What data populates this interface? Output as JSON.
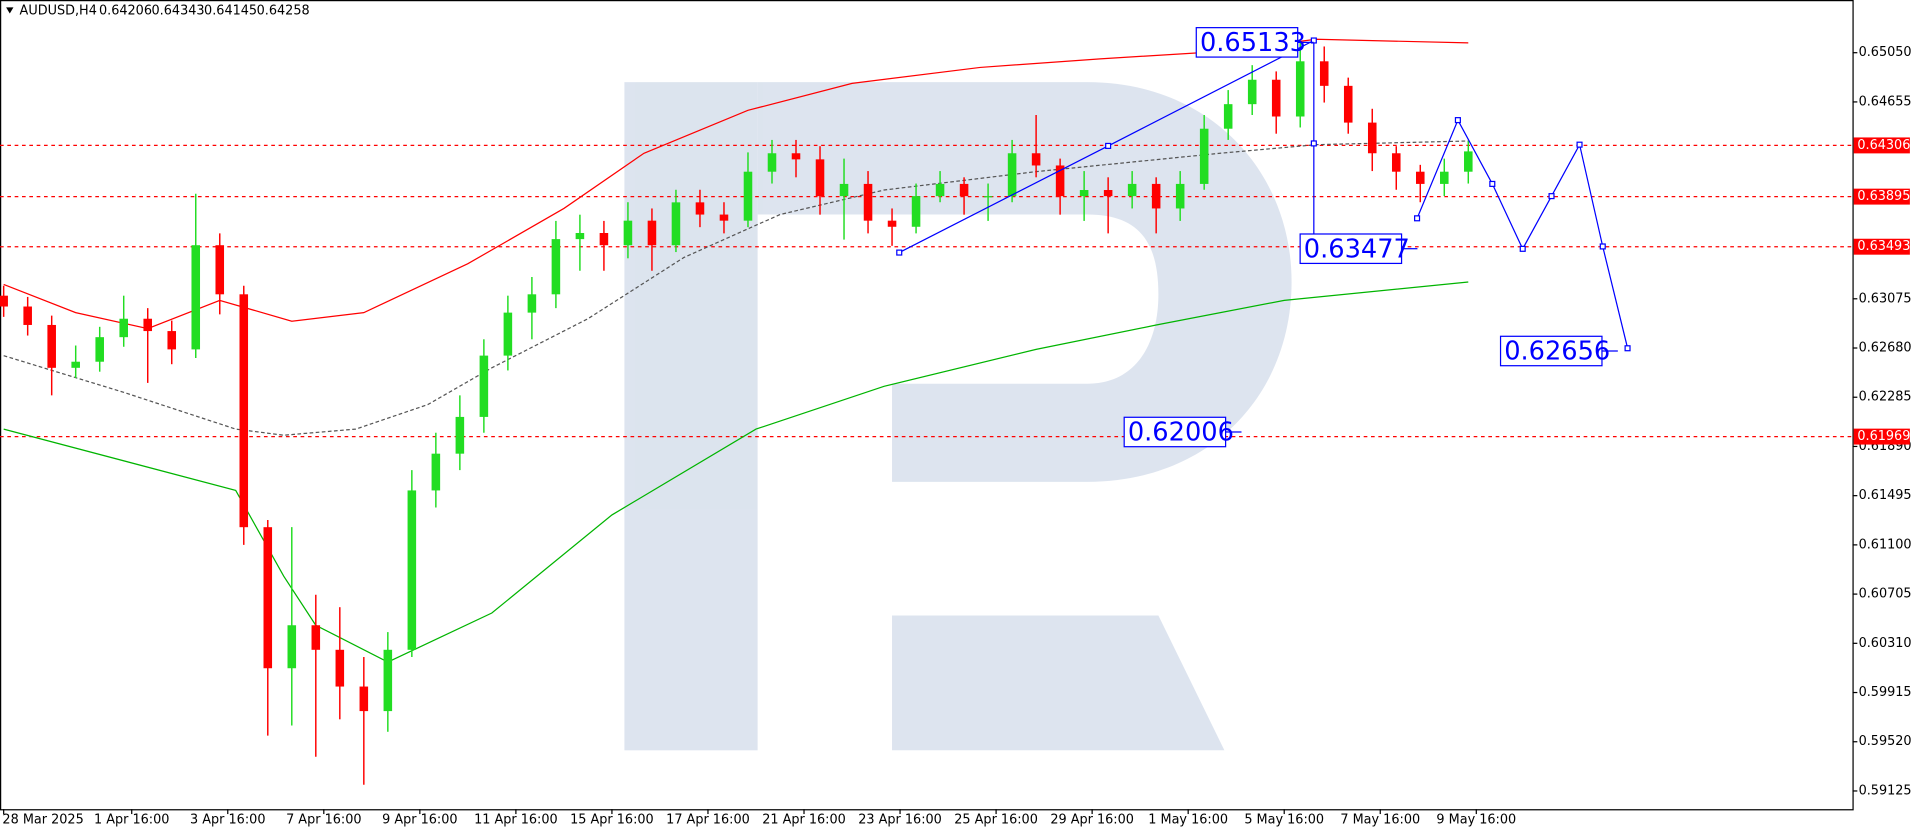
{
  "header": {
    "symbol": "AUDUSD,H4",
    "quote": [
      0.64206,
      0.64343,
      0.64145,
      0.64258
    ]
  },
  "chart_data": {
    "type": "candlestick",
    "x": [
      0,
      3,
      6,
      9,
      12,
      15,
      18,
      21,
      24,
      27,
      30,
      33,
      36,
      39,
      42,
      45,
      48,
      51,
      54,
      57,
      60,
      63,
      66,
      69,
      72,
      75,
      78,
      81,
      84,
      87,
      90,
      93,
      96,
      99,
      102,
      105,
      108,
      111,
      114,
      117,
      120,
      123,
      126,
      129,
      132,
      135,
      138,
      141,
      144,
      147,
      150,
      153,
      156,
      159,
      162,
      165,
      168,
      171,
      174,
      177,
      180,
      183
    ],
    "open": [
      0.631,
      0.63013,
      0.62865,
      0.62521,
      0.6257,
      0.62767,
      0.62915,
      0.62816,
      0.62669,
      0.63505,
      0.63111,
      0.61242,
      0.6011,
      0.60455,
      0.60258,
      0.59963,
      0.59766,
      0.60258,
      0.61537,
      0.61832,
      0.62127,
      0.62619,
      0.62964,
      0.63111,
      0.63554,
      0.63603,
      0.63505,
      0.63702,
      0.63505,
      0.63849,
      0.63751,
      0.63702,
      0.64095,
      0.64243,
      0.64194,
      0.63899,
      0.63997,
      0.63702,
      0.63653,
      0.63899,
      0.63997,
      0.63899,
      0.63899,
      0.64243,
      0.64145,
      0.63899,
      0.63948,
      0.63899,
      0.63997,
      0.638,
      0.63997,
      0.6444,
      0.64637,
      0.64833,
      0.64538,
      0.64981,
      0.64784,
      0.64489,
      0.64243,
      0.64095,
      0.63997,
      0.64095
    ],
    "high": [
      0.6318,
      0.6309,
      0.6294,
      0.627,
      0.6285,
      0.631,
      0.63,
      0.629,
      0.63918,
      0.636,
      0.6318,
      0.613,
      0.61242,
      0.607,
      0.606,
      0.602,
      0.604,
      0.617,
      0.62,
      0.623,
      0.6275,
      0.631,
      0.6325,
      0.637,
      0.6375,
      0.637,
      0.6385,
      0.638,
      0.6395,
      0.6395,
      0.6385,
      0.6425,
      0.6435,
      0.6435,
      0.643,
      0.642,
      0.641,
      0.638,
      0.64,
      0.641,
      0.6405,
      0.64,
      0.6435,
      0.6455,
      0.642,
      0.641,
      0.6405,
      0.641,
      0.6405,
      0.641,
      0.6455,
      0.6475,
      0.6495,
      0.649,
      0.65133,
      0.651,
      0.6485,
      0.646,
      0.643,
      0.6415,
      0.642,
      0.64343
    ],
    "low": [
      0.6293,
      0.6278,
      0.623,
      0.6244,
      0.6249,
      0.6269,
      0.624,
      0.6255,
      0.626,
      0.6295,
      0.611,
      0.59569,
      0.5965,
      0.594,
      0.597,
      0.59175,
      0.596,
      0.602,
      0.614,
      0.617,
      0.62,
      0.625,
      0.6275,
      0.63,
      0.633,
      0.633,
      0.634,
      0.633,
      0.6345,
      0.6365,
      0.636,
      0.6365,
      0.64,
      0.6405,
      0.6375,
      0.6355,
      0.636,
      0.635,
      0.636,
      0.6385,
      0.6375,
      0.637,
      0.6385,
      0.6405,
      0.6375,
      0.637,
      0.636,
      0.638,
      0.636,
      0.637,
      0.6395,
      0.6435,
      0.6455,
      0.644,
      0.6445,
      0.6465,
      0.644,
      0.641,
      0.6395,
      0.6385,
      0.639,
      0.64
    ],
    "close": [
      0.63013,
      0.62865,
      0.62521,
      0.6257,
      0.62767,
      0.62915,
      0.62816,
      0.62669,
      0.63505,
      0.63111,
      0.61242,
      0.6011,
      0.60455,
      0.60258,
      0.59963,
      0.59766,
      0.60258,
      0.61537,
      0.61832,
      0.62127,
      0.62619,
      0.62964,
      0.63111,
      0.63554,
      0.63603,
      0.63505,
      0.63702,
      0.63505,
      0.63849,
      0.63751,
      0.63702,
      0.64095,
      0.64243,
      0.64194,
      0.63899,
      0.63997,
      0.63702,
      0.63653,
      0.63899,
      0.63997,
      0.63899,
      0.63899,
      0.64243,
      0.64145,
      0.63899,
      0.63948,
      0.63899,
      0.63997,
      0.638,
      0.63997,
      0.6444,
      0.64637,
      0.64833,
      0.64538,
      0.64981,
      0.64784,
      0.64489,
      0.64243,
      0.64095,
      0.63997,
      0.64095,
      0.64258
    ],
    "up_color": "#22dd22",
    "down_color": "#ff0000",
    "xlim": [
      0,
      231
    ],
    "xticks": [
      {
        "value": 0,
        "label": "28 Mar 2025"
      },
      {
        "value": 16,
        "label": "1 Apr 16:00"
      },
      {
        "value": 28,
        "label": "3 Apr 16:00"
      },
      {
        "value": 40,
        "label": "7 Apr 16:00"
      },
      {
        "value": 52,
        "label": "9 Apr 16:00"
      },
      {
        "value": 64,
        "label": "11 Apr 16:00"
      },
      {
        "value": 76,
        "label": "15 Apr 16:00"
      },
      {
        "value": 88,
        "label": "17 Apr 16:00"
      },
      {
        "value": 100,
        "label": "21 Apr 16:00"
      },
      {
        "value": 112,
        "label": "23 Apr 16:00"
      },
      {
        "value": 124,
        "label": "25 Apr 16:00"
      },
      {
        "value": 136,
        "label": "29 Apr 16:00"
      },
      {
        "value": 148,
        "label": "1 May 16:00"
      },
      {
        "value": 160,
        "label": "5 May 16:00"
      },
      {
        "value": 172,
        "label": "7 May 16:00"
      },
      {
        "value": 184,
        "label": "9 May 16:00"
      }
    ],
    "ylim": [
      0.58979,
      0.65473
    ],
    "yticks": [
      {
        "value": 0.6505,
        "label": "0.65050"
      },
      0.64655,
      0.63075,
      {
        "value": 0.6268,
        "label": "0.62680"
      },
      0.62285,
      {
        "value": 0.6189,
        "label": "0.61890"
      },
      0.61495,
      {
        "value": 0.611,
        "label": "0.61100"
      },
      0.60705,
      {
        "value": 0.6031,
        "label": "0.60310"
      },
      0.59915,
      {
        "value": 0.5952,
        "label": "0.59520"
      },
      0.59125
    ],
    "lines": [
      {
        "color": "#ff0000",
        "dashed": false,
        "x": [
          0,
          9,
          18,
          27,
          36,
          45,
          58,
          70,
          80,
          93,
          106,
          122,
          137,
          152,
          164,
          183
        ],
        "values": [
          0.6319,
          0.62964,
          0.62836,
          0.63062,
          0.62895,
          0.62964,
          0.63357,
          0.638,
          0.64243,
          0.64587,
          0.64804,
          0.64932,
          0.65001,
          0.6506,
          0.65158,
          0.65129
        ]
      },
      {
        "color": "#00b400",
        "dashed": false,
        "x": [
          0,
          29,
          35,
          39,
          48,
          61,
          76,
          94,
          110,
          129,
          144,
          160,
          183
        ],
        "values": [
          0.62029,
          0.61537,
          0.60848,
          0.60455,
          0.6016,
          0.60553,
          0.6134,
          0.62029,
          0.62373,
          0.62669,
          0.62865,
          0.63062,
          0.6321
        ]
      },
      {
        "color": "#555555",
        "dashed": true,
        "x": [
          0,
          15,
          29,
          35,
          44,
          53,
          61,
          73,
          85,
          97,
          110,
          129,
          152,
          164,
          183
        ],
        "values": [
          0.62619,
          0.62324,
          0.62029,
          0.6198,
          0.62029,
          0.62226,
          0.62521,
          0.62915,
          0.63407,
          0.63751,
          0.63948,
          0.64095,
          0.64243,
          0.64312,
          0.64341
        ]
      }
    ],
    "levels": [
      0.64306,
      0.63895,
      0.63493,
      0.61969
    ],
    "level_color": "#ff0000",
    "trend": {
      "color": "#0000ff",
      "x": [
        111.9,
        138.0,
        163.7,
        163.7,
        163.7
      ],
      "values": [
        0.63446,
        0.64302,
        0.65148,
        0.64322,
        0.63495
      ]
    },
    "forecast": {
      "color": "#0000ff",
      "x": [
        176.6,
        181.7,
        186.0,
        189.8,
        193.4,
        196.9,
        199.8,
        202.9
      ],
      "values": [
        0.63721,
        0.64509,
        0.63997,
        0.63476,
        0.63899,
        0.64312,
        0.63495,
        0.62678
      ]
    },
    "annotations": [
      0.65133,
      0.63477,
      0.62656,
      0.62006
    ],
    "annotation_color": "#0000ff"
  }
}
